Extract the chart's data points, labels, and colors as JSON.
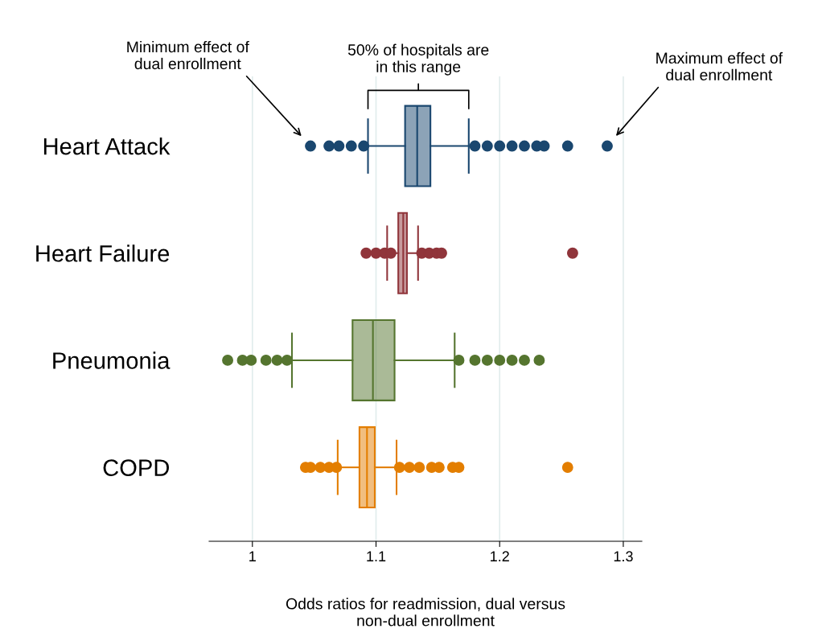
{
  "chart_data": {
    "type": "box",
    "orientation": "horizontal",
    "categories": [
      "Heart Attack",
      "Heart Failure",
      "Pneumonia",
      "COPD"
    ],
    "boxes": [
      {
        "low": 1.0935,
        "q1": 1.1235,
        "median": 1.1333,
        "q3": 1.144,
        "high": 1.175,
        "outliers": [
          1.047,
          1.062,
          1.07,
          1.08,
          1.09,
          1.18,
          1.19,
          1.2,
          1.21,
          1.22,
          1.23,
          1.236,
          1.255,
          1.287
        ]
      },
      {
        "low": 1.109,
        "q1": 1.118,
        "median": 1.122,
        "q3": 1.125,
        "high": 1.134,
        "outliers": [
          1.092,
          1.1,
          1.107,
          1.112,
          1.137,
          1.143,
          1.149,
          1.153,
          1.259
        ]
      },
      {
        "low": 1.032,
        "q1": 1.081,
        "median": 1.0975,
        "q3": 1.115,
        "high": 1.1636,
        "outliers": [
          0.98,
          0.992,
          0.999,
          1.011,
          1.02,
          1.028,
          1.167,
          1.18,
          1.19,
          1.2,
          1.21,
          1.22,
          1.232
        ]
      },
      {
        "low": 1.069,
        "q1": 1.0866,
        "median": 1.0927,
        "q3": 1.099,
        "high": 1.1166,
        "outliers": [
          1.043,
          1.047,
          1.055,
          1.062,
          1.068,
          1.119,
          1.127,
          1.135,
          1.145,
          1.151,
          1.162,
          1.167,
          1.255
        ]
      }
    ],
    "colors": [
      "#1a476f",
      "#90353b",
      "#55752f",
      "#e37e00"
    ],
    "xlim": [
      0.965,
      1.315
    ],
    "xticks": [
      1,
      1.1,
      1.2,
      1.3
    ],
    "grid": "x",
    "xlabel": "Odds ratios for readmission, dual versus\nnon-dual enrollment",
    "annotations": [
      "Minimum effect of\ndual enrollment",
      "Maximum effect of\ndual enrollment",
      "50% of hospitals are\nin this range"
    ]
  }
}
